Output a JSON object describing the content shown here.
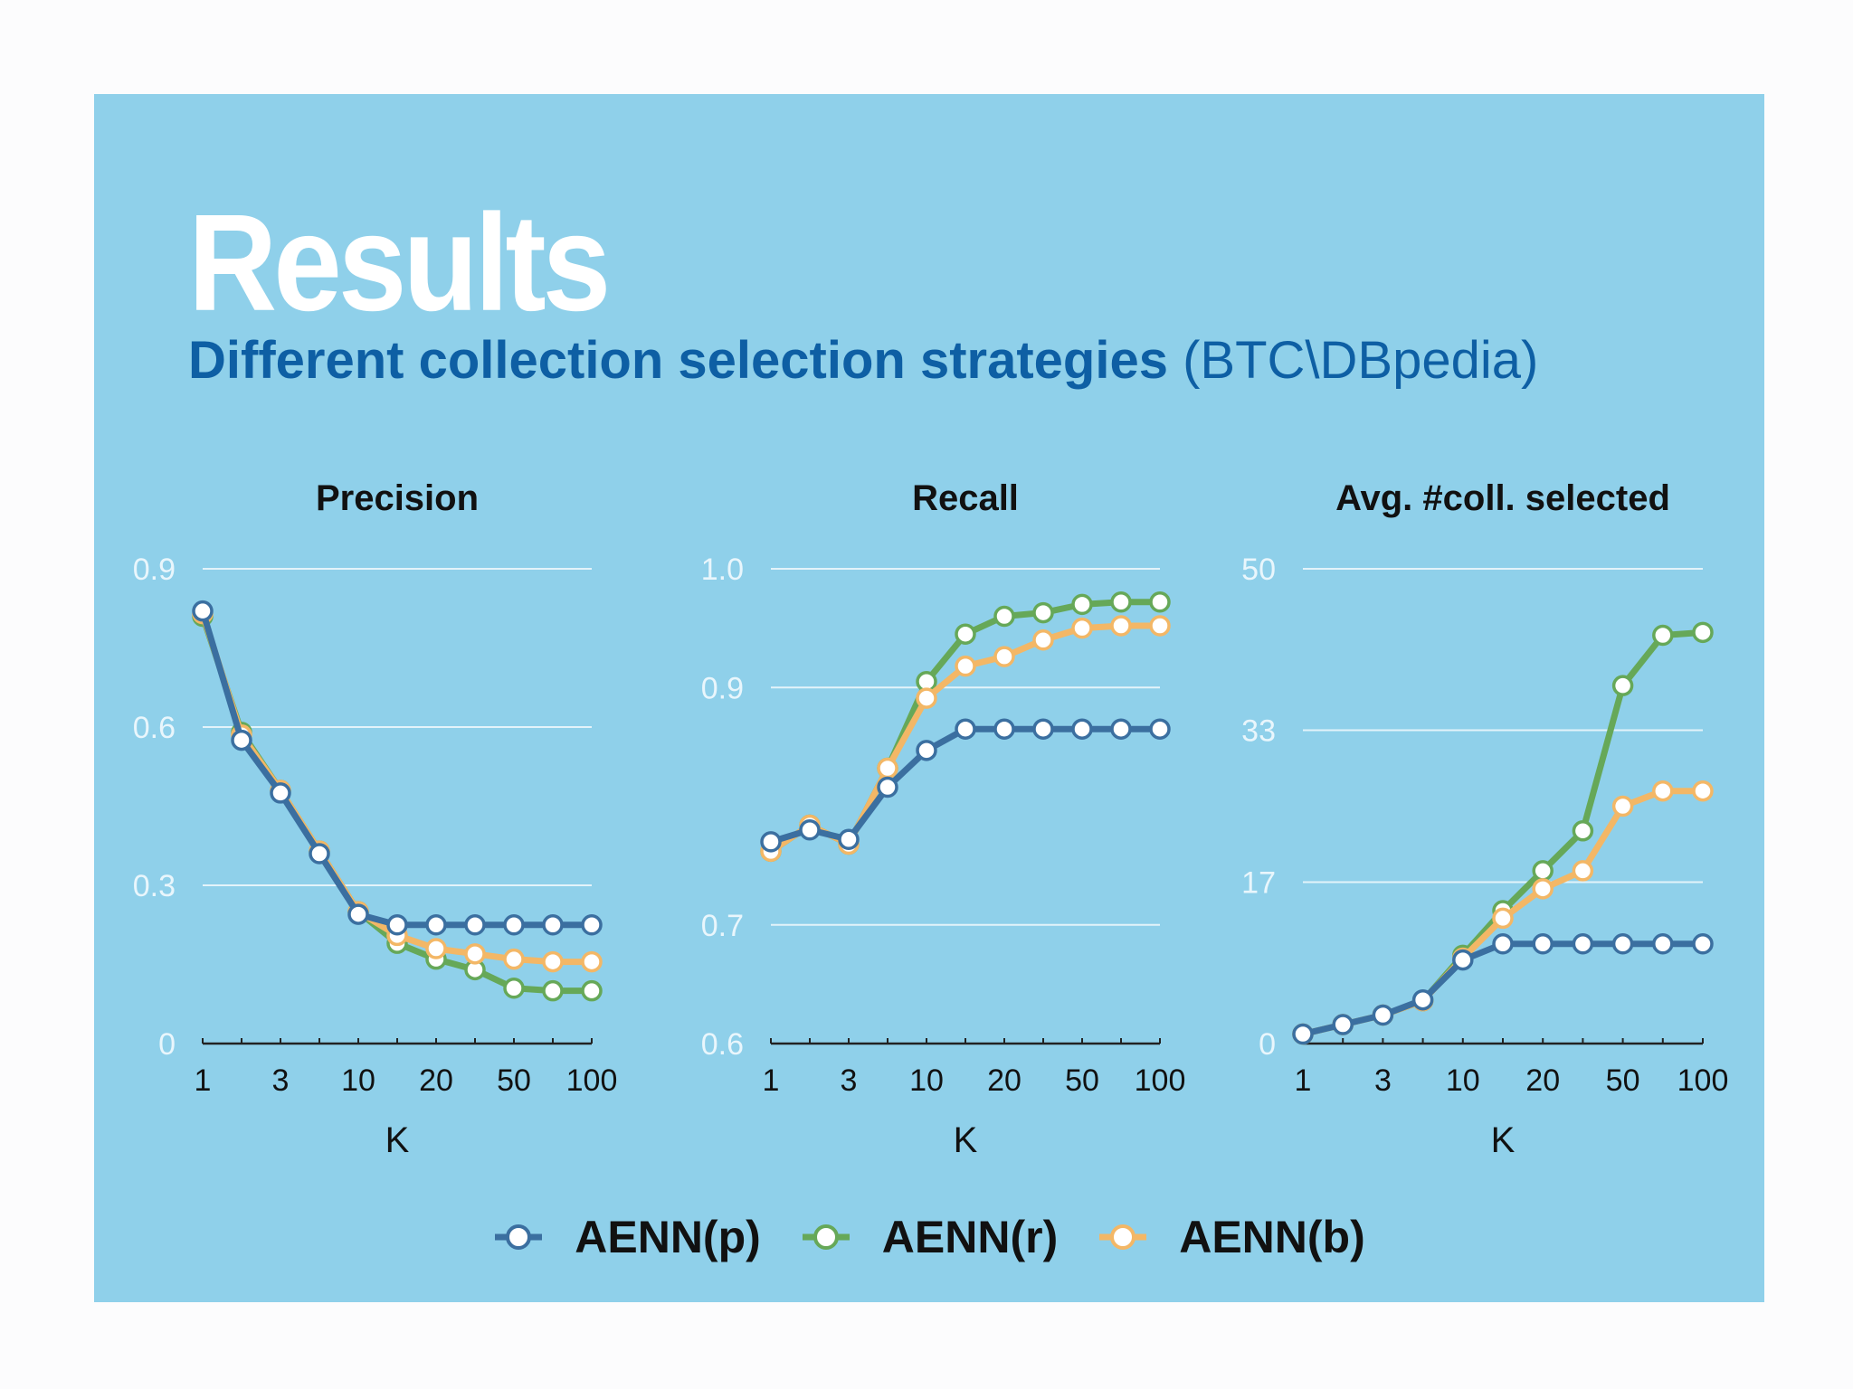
{
  "slide": {
    "title": "Results",
    "subtitle_bold": "Different collection selection strategies",
    "subtitle_rest": "(BTC\\DBpedia)"
  },
  "colors": {
    "background": "#8fd0ea",
    "title": "#ffffff",
    "subtitle": "#0e5fa4",
    "tick_label": "#e9f6fc",
    "grid": "#e3f3fa",
    "series": {
      "AENN(p)": "#3b6fa0",
      "AENN(r)": "#66a858",
      "AENN(b)": "#f3b766"
    }
  },
  "legend": [
    {
      "label": "AENN(p)",
      "color": "#3b6fa0"
    },
    {
      "label": "AENN(r)",
      "color": "#66a858"
    },
    {
      "label": "AENN(b)",
      "color": "#f3b766"
    }
  ],
  "chart_data": [
    {
      "type": "line",
      "title": "Precision",
      "xlabel": "K",
      "ylabel": "",
      "x_ticks": [
        "1",
        "3",
        "10",
        "20",
        "50",
        "100"
      ],
      "y_ticks": [
        "0",
        "0.3",
        "0.6",
        "0.9"
      ],
      "ylim": [
        0,
        0.9
      ],
      "grid": true,
      "legend": "bottom",
      "x": [
        1,
        2,
        3,
        5,
        10,
        15,
        20,
        30,
        50,
        70,
        100
      ],
      "series": [
        {
          "name": "AENN(r)",
          "values": [
            0.81,
            0.59,
            0.48,
            0.365,
            0.25,
            0.19,
            0.16,
            0.14,
            0.105,
            0.1,
            0.1
          ]
        },
        {
          "name": "AENN(b)",
          "values": [
            0.815,
            0.585,
            0.48,
            0.365,
            0.25,
            0.205,
            0.18,
            0.17,
            0.16,
            0.155,
            0.155
          ]
        },
        {
          "name": "AENN(p)",
          "values": [
            0.82,
            0.575,
            0.475,
            0.36,
            0.245,
            0.225,
            0.225,
            0.225,
            0.225,
            0.225,
            0.225
          ]
        }
      ]
    },
    {
      "type": "line",
      "title": "Recall",
      "xlabel": "K",
      "ylabel": "",
      "x_ticks": [
        "1",
        "3",
        "10",
        "20",
        "50",
        "100"
      ],
      "y_ticks": [
        "0.6",
        "0.7",
        "0.9",
        "1.0"
      ],
      "ylim": [
        0.6,
        1.0
      ],
      "grid": true,
      "legend": "bottom",
      "x": [
        1,
        2,
        3,
        5,
        10,
        15,
        20,
        30,
        50,
        70,
        100
      ],
      "series": [
        {
          "name": "AENN(r)",
          "values": [
            0.762,
            0.784,
            0.768,
            0.832,
            0.905,
            0.945,
            0.96,
            0.963,
            0.97,
            0.972,
            0.972
          ]
        },
        {
          "name": "AENN(b)",
          "values": [
            0.762,
            0.784,
            0.768,
            0.832,
            0.891,
            0.918,
            0.926,
            0.94,
            0.95,
            0.952,
            0.952
          ]
        },
        {
          "name": "AENN(p)",
          "values": [
            0.77,
            0.78,
            0.772,
            0.816,
            0.847,
            0.865,
            0.865,
            0.865,
            0.865,
            0.865,
            0.865
          ]
        }
      ]
    },
    {
      "type": "line",
      "title": "Avg. #coll. selected",
      "xlabel": "K",
      "ylabel": "",
      "x_ticks": [
        "1",
        "3",
        "10",
        "20",
        "50",
        "100"
      ],
      "y_ticks": [
        "0",
        "17",
        "33",
        "50"
      ],
      "ylim": [
        0,
        50
      ],
      "grid": true,
      "legend": "bottom",
      "x": [
        1,
        2,
        3,
        5,
        10,
        15,
        20,
        30,
        50,
        70,
        100
      ],
      "series": [
        {
          "name": "AENN(r)",
          "values": [
            1,
            2,
            3,
            4.5,
            9.3,
            14,
            18.2,
            22.4,
            37.7,
            43,
            43.3
          ]
        },
        {
          "name": "AENN(b)",
          "values": [
            1,
            2,
            3,
            4.5,
            9.0,
            13.2,
            16.3,
            18.2,
            25,
            26.6,
            26.6
          ]
        },
        {
          "name": "AENN(p)",
          "values": [
            1,
            2,
            3,
            4.6,
            8.8,
            10.5,
            10.5,
            10.5,
            10.5,
            10.5,
            10.5
          ]
        }
      ]
    }
  ]
}
